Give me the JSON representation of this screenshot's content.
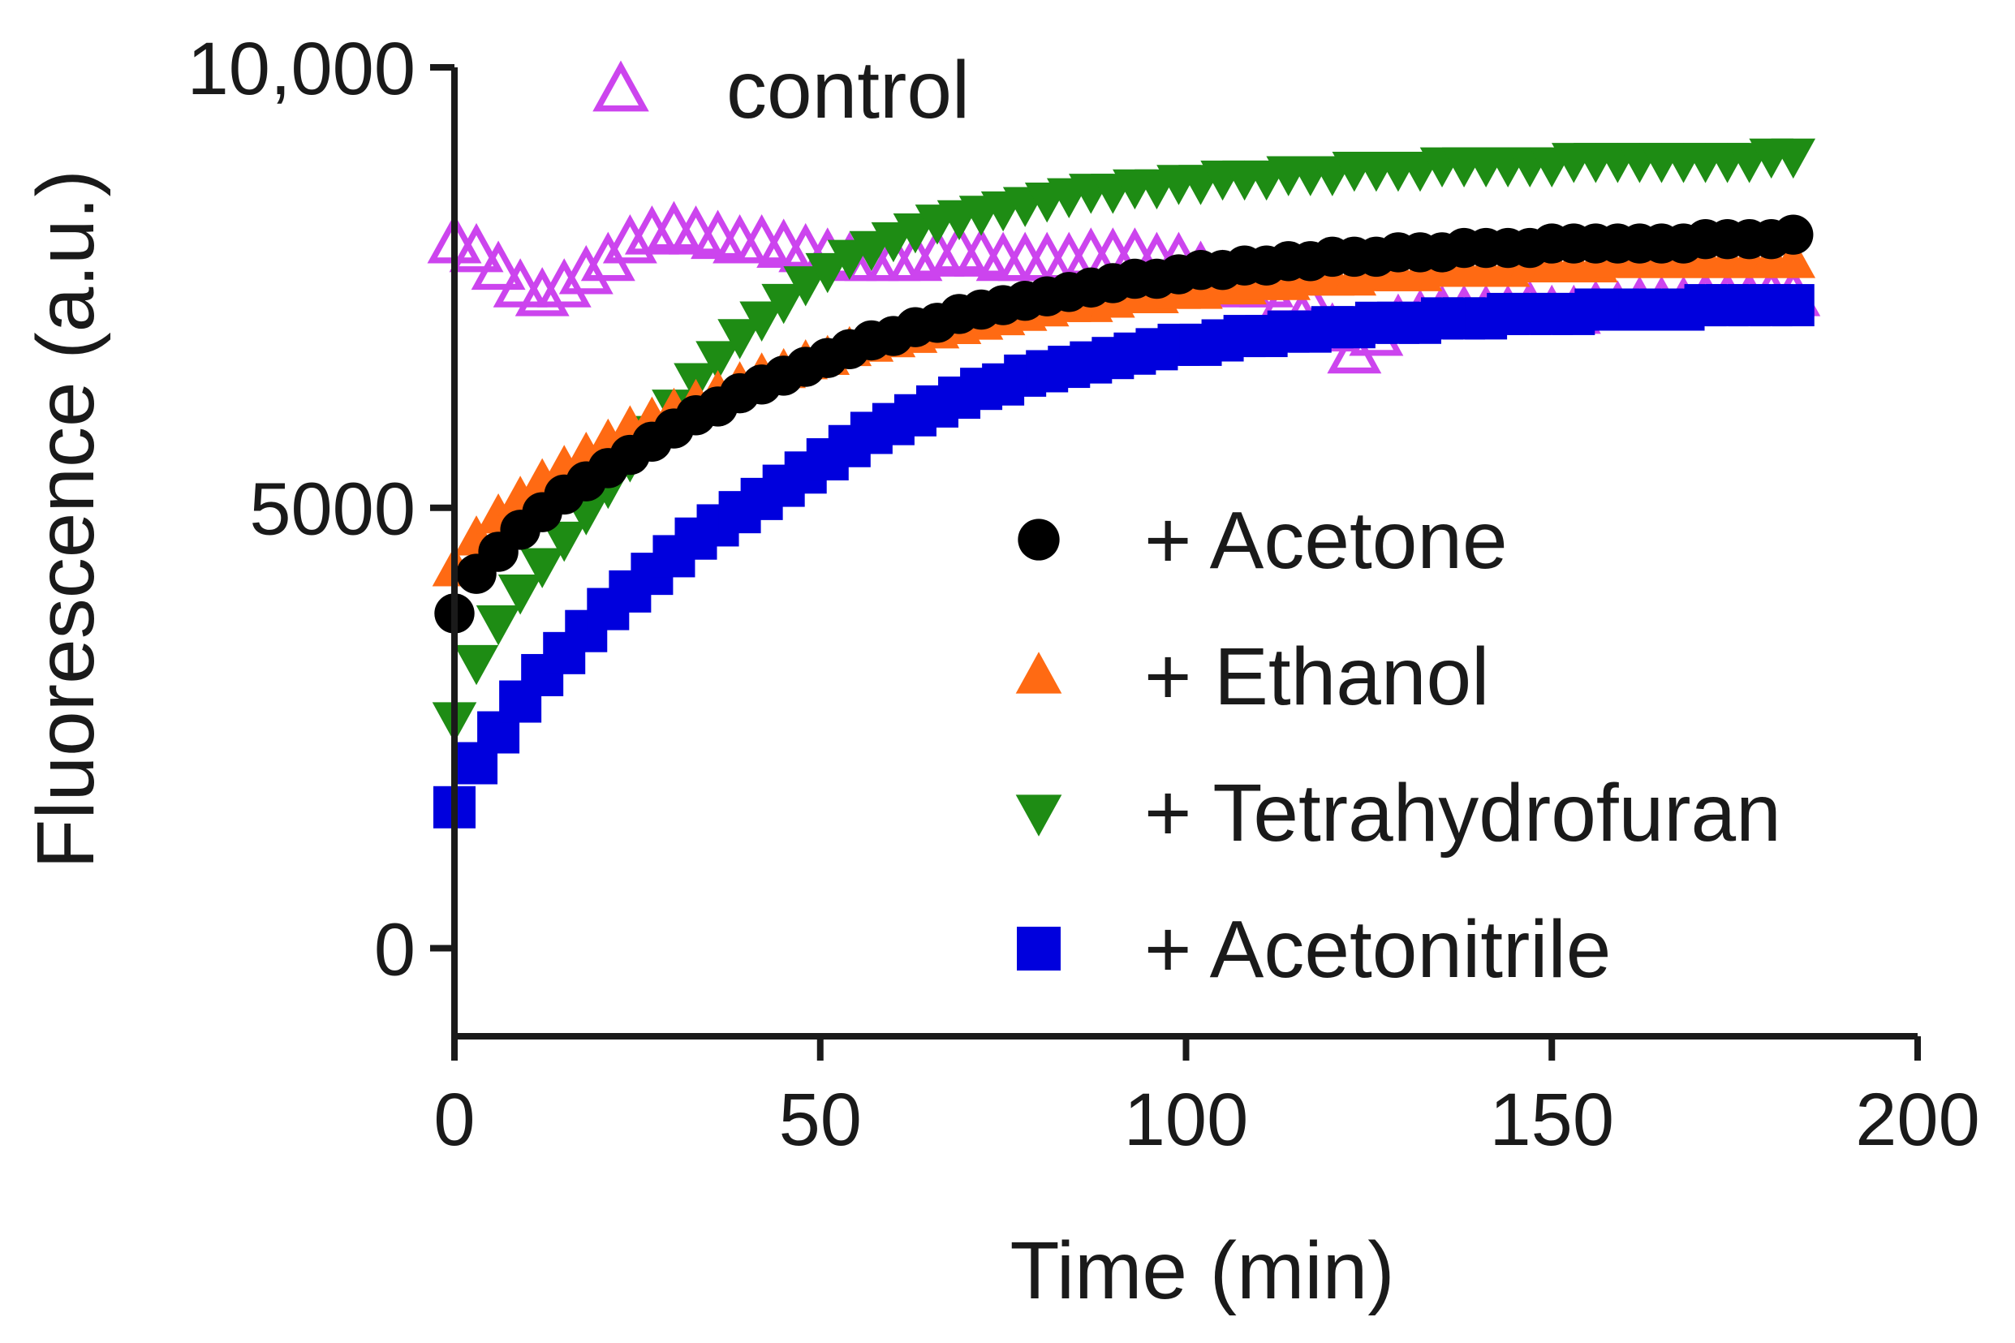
{
  "chart_data": {
    "type": "scatter",
    "xlabel": "Time (min)",
    "ylabel": "Fluorescence (a.u.)",
    "xlim": [
      0,
      200
    ],
    "ylim": [
      -1000,
      10000
    ],
    "x_ticks": [
      0,
      50,
      100,
      150,
      200
    ],
    "x_tick_labels": [
      "0",
      "50",
      "100",
      "150",
      "200"
    ],
    "y_ticks": [
      0,
      5000,
      10000
    ],
    "y_tick_labels": [
      "0",
      "5000",
      "10,000"
    ],
    "grid": false,
    "x_step_min": 3,
    "series": [
      {
        "name": "control",
        "legend_label": "control",
        "marker": "triangle-up-open",
        "color": "#cc44ee",
        "legend_position": "top-left",
        "y": [
          8000,
          7900,
          7700,
          7500,
          7400,
          7500,
          7650,
          7800,
          8000,
          8100,
          8150,
          8100,
          8050,
          8000,
          8000,
          7950,
          7900,
          7850,
          7800,
          7800,
          7800,
          7800,
          7850,
          7900,
          7850,
          7800,
          7800,
          7800,
          7800,
          7850,
          7850,
          7850,
          7800,
          7800,
          7700,
          7600,
          7500,
          7500,
          7400,
          7300,
          7000,
          6750,
          6950,
          7100,
          7150,
          7200,
          7200,
          7200,
          7200,
          7250,
          7200,
          7200,
          7250,
          7250,
          7300,
          7300,
          7300,
          7350,
          7350,
          7350,
          7400,
          7400
        ]
      },
      {
        "name": "+ Acetone",
        "legend_label": "+ Acetone",
        "marker": "circle",
        "color": "#000000",
        "y": [
          3800,
          4250,
          4500,
          4750,
          4950,
          5150,
          5300,
          5450,
          5600,
          5750,
          5900,
          6050,
          6150,
          6300,
          6400,
          6500,
          6600,
          6700,
          6800,
          6900,
          6950,
          7050,
          7100,
          7200,
          7250,
          7300,
          7350,
          7400,
          7450,
          7500,
          7550,
          7600,
          7600,
          7650,
          7700,
          7700,
          7750,
          7750,
          7800,
          7800,
          7850,
          7850,
          7850,
          7900,
          7900,
          7900,
          7950,
          7950,
          7950,
          7950,
          8000,
          8000,
          8000,
          8000,
          8000,
          8000,
          8000,
          8050,
          8050,
          8050,
          8050,
          8100
        ]
      },
      {
        "name": "+ Ethanol",
        "legend_label": "+ Ethanol",
        "marker": "triangle-up",
        "color": "#ff6a13",
        "y": [
          4300,
          4650,
          4900,
          5100,
          5300,
          5450,
          5600,
          5750,
          5900,
          6000,
          6100,
          6200,
          6300,
          6400,
          6500,
          6550,
          6650,
          6700,
          6800,
          6850,
          6900,
          6950,
          7000,
          7050,
          7100,
          7150,
          7200,
          7250,
          7300,
          7300,
          7350,
          7400,
          7400,
          7450,
          7450,
          7500,
          7500,
          7550,
          7550,
          7600,
          7600,
          7600,
          7650,
          7650,
          7650,
          7700,
          7700,
          7700,
          7700,
          7750,
          7750,
          7750,
          7750,
          7800,
          7800,
          7800,
          7800,
          7800,
          7800,
          7800,
          7800,
          7800
        ]
      },
      {
        "name": "+ Tetrahydrofuran",
        "legend_label": "+ Tetrahydrofuran",
        "marker": "triangle-down",
        "color": "#1e8c14",
        "y": [
          2600,
          3250,
          3700,
          4050,
          4350,
          4650,
          4950,
          5250,
          5550,
          5850,
          6150,
          6450,
          6700,
          6950,
          7150,
          7350,
          7550,
          7700,
          7850,
          7950,
          8050,
          8150,
          8250,
          8300,
          8350,
          8400,
          8450,
          8500,
          8550,
          8600,
          8600,
          8650,
          8650,
          8700,
          8700,
          8750,
          8750,
          8750,
          8800,
          8800,
          8800,
          8850,
          8850,
          8850,
          8850,
          8900,
          8900,
          8900,
          8900,
          8900,
          8900,
          8950,
          8950,
          8950,
          8950,
          8950,
          8950,
          8950,
          8950,
          8950,
          9000,
          9000
        ]
      },
      {
        "name": "+ Acetonitrile",
        "legend_label": "+ Acetonitrile",
        "marker": "square",
        "color": "#0000dd",
        "y": [
          1600,
          2100,
          2450,
          2800,
          3100,
          3350,
          3600,
          3850,
          4050,
          4250,
          4450,
          4650,
          4800,
          4950,
          5100,
          5250,
          5400,
          5550,
          5700,
          5850,
          5950,
          6050,
          6150,
          6250,
          6350,
          6400,
          6500,
          6550,
          6600,
          6650,
          6700,
          6750,
          6800,
          6850,
          6850,
          6900,
          6950,
          6950,
          7000,
          7000,
          7050,
          7050,
          7100,
          7100,
          7100,
          7150,
          7150,
          7150,
          7200,
          7200,
          7200,
          7200,
          7250,
          7250,
          7250,
          7250,
          7250,
          7300,
          7300,
          7300,
          7300,
          7300
        ]
      }
    ]
  }
}
